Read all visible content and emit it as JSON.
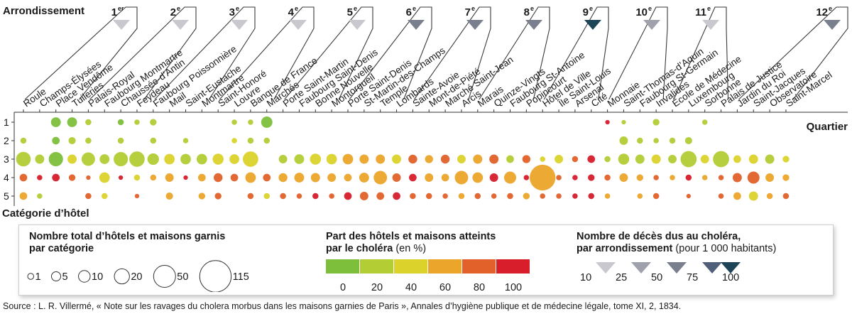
{
  "labels": {
    "arrondissement_title": "Arrondissement",
    "quartier_title": "Quartier",
    "categorie_title": "Catégorie d’hôtel",
    "source": "Source : L. R. Villermé, « Note sur les ravages du cholera morbus dans les maisons garnies de Paris », Annales d’hygiène publique et de médecine légale, tome XI, 2, 1834."
  },
  "legend": {
    "size_title_line1": "Nombre total d’hôtels et maisons garnis",
    "size_title_line2": "par catégorie",
    "size_values": [
      1,
      5,
      10,
      20,
      50,
      115
    ],
    "share_title_line1": "Part des hôtels et maisons atteints",
    "share_title_line2": "par le choléra",
    "share_unit": "(en %)",
    "share_ticks": [
      0,
      20,
      40,
      60,
      80,
      100
    ],
    "share_colors": [
      "#7dbf3a",
      "#b3cd34",
      "#dcd22c",
      "#eba52a",
      "#e2612a",
      "#d81d2b"
    ],
    "death_title_line1": "Nombre de décès dus au choléra,",
    "death_title_line2": "par arrondissement",
    "death_unit": "(pour 1 000 habitants)",
    "death_ticks": [
      10,
      25,
      50,
      75,
      100
    ],
    "death_colors": [
      "#c8c8ce",
      "#9fa1ac",
      "#7a7f8e",
      "#51607a",
      "#1e4458"
    ]
  },
  "chart_data": {
    "type": "bubble-matrix",
    "categories_y": [
      "1",
      "2",
      "3",
      "4",
      "5"
    ],
    "quartiers": [
      "Roule",
      "Champs-Élysées",
      "Place Vendôme",
      "Tuileries",
      "Palais-Royal",
      "Faubourg Montmartre",
      "Chaussée-d’Antin",
      "Feydeau",
      "Faubourg Poissonnière",
      "Mail",
      "Saint-Eustache",
      "Montmartre",
      "Saint-Honoré",
      "Louvre",
      "Banque de France",
      "Marchés",
      "Porte Saint-Martin",
      "Faubourg Saint-Denis",
      "Bonne Nouvelle",
      "Montorgueil",
      "Porte Saint-Denis",
      "St-Martin-des-Champs",
      "Temple",
      "Lombards",
      "Sainte-Avoie",
      "Mont-de-Piété",
      "Marché Saint-Jean",
      "Arcis",
      "Marais",
      "Quinze-Vingts",
      "Faubourg St-Antoine",
      "Popincourt",
      "Hôtel de Ville",
      "Île Saint-Louis",
      "Arsenal",
      "Cité",
      "Monnaie",
      "Saint-Thomas-d’Aquin",
      "Faubourg St-Germain",
      "Invalides",
      "École de Médecine",
      "Luxembourg",
      "Sorbonne",
      "Palais de Justice",
      "Jardin du Roi",
      "Saint-Jacques",
      "Observatoire",
      "Saint-Marcel"
    ],
    "arrondissements": [
      {
        "label": "1",
        "suffix": "er",
        "deaths_per_1000": 12,
        "quartiers": [
          0,
          1,
          2,
          3
        ]
      },
      {
        "label": "2",
        "suffix": "e",
        "deaths_per_1000": 12,
        "quartiers": [
          4,
          5,
          6,
          7
        ]
      },
      {
        "label": "3",
        "suffix": "e",
        "deaths_per_1000": 12,
        "quartiers": [
          8,
          9,
          10,
          11
        ]
      },
      {
        "label": "4",
        "suffix": "e",
        "deaths_per_1000": 14,
        "quartiers": [
          12,
          13,
          14,
          15
        ]
      },
      {
        "label": "5",
        "suffix": "e",
        "deaths_per_1000": 14,
        "quartiers": [
          16,
          17,
          18,
          19
        ]
      },
      {
        "label": "6",
        "suffix": "e",
        "deaths_per_1000": 40,
        "quartiers": [
          20,
          21,
          22,
          23
        ]
      },
      {
        "label": "7",
        "suffix": "e",
        "deaths_per_1000": 40,
        "quartiers": [
          24,
          25,
          26,
          27
        ]
      },
      {
        "label": "8",
        "suffix": "e",
        "deaths_per_1000": 40,
        "quartiers": [
          28,
          29,
          30,
          31
        ]
      },
      {
        "label": "9",
        "suffix": "e",
        "deaths_per_1000": 100,
        "quartiers": [
          32,
          33,
          34,
          35
        ]
      },
      {
        "label": "10",
        "suffix": "e",
        "deaths_per_1000": 25,
        "quartiers": [
          36,
          37,
          38,
          39
        ]
      },
      {
        "label": "11",
        "suffix": "e",
        "deaths_per_1000": 15,
        "quartiers": [
          40,
          41,
          42,
          43
        ]
      },
      {
        "label": "12",
        "suffix": "e",
        "deaths_per_1000": 60,
        "quartiers": [
          44,
          45,
          46,
          47
        ]
      }
    ],
    "bubbles": [
      {
        "q": 0,
        "cat": 2,
        "n": 3,
        "pct": 20
      },
      {
        "q": 0,
        "cat": 3,
        "n": 32,
        "pct": 20
      },
      {
        "q": 0,
        "cat": 4,
        "n": 6,
        "pct": 80
      },
      {
        "q": 0,
        "cat": 5,
        "n": 6,
        "pct": 60
      },
      {
        "q": 1,
        "cat": 3,
        "n": 10,
        "pct": 20
      },
      {
        "q": 1,
        "cat": 4,
        "n": 2,
        "pct": 100
      },
      {
        "q": 1,
        "cat": 5,
        "n": 2,
        "pct": 20
      },
      {
        "q": 2,
        "cat": 1,
        "n": 12,
        "pct": 0
      },
      {
        "q": 2,
        "cat": 2,
        "n": 6,
        "pct": 0
      },
      {
        "q": 2,
        "cat": 3,
        "n": 30,
        "pct": 0
      },
      {
        "q": 2,
        "cat": 4,
        "n": 6,
        "pct": 100
      },
      {
        "q": 3,
        "cat": 1,
        "n": 12,
        "pct": 0
      },
      {
        "q": 3,
        "cat": 2,
        "n": 5,
        "pct": 20
      },
      {
        "q": 3,
        "cat": 3,
        "n": 10,
        "pct": 40
      },
      {
        "q": 3,
        "cat": 4,
        "n": 4,
        "pct": 80
      },
      {
        "q": 4,
        "cat": 1,
        "n": 3,
        "pct": 20
      },
      {
        "q": 4,
        "cat": 2,
        "n": 3,
        "pct": 20
      },
      {
        "q": 4,
        "cat": 3,
        "n": 26,
        "pct": 20
      },
      {
        "q": 4,
        "cat": 4,
        "n": 1,
        "pct": 80
      },
      {
        "q": 4,
        "cat": 5,
        "n": 3,
        "pct": 80
      },
      {
        "q": 5,
        "cat": 3,
        "n": 12,
        "pct": 20
      },
      {
        "q": 5,
        "cat": 4,
        "n": 14,
        "pct": 40
      },
      {
        "q": 5,
        "cat": 5,
        "n": 3,
        "pct": 40
      },
      {
        "q": 6,
        "cat": 1,
        "n": 3,
        "pct": 0
      },
      {
        "q": 6,
        "cat": 2,
        "n": 3,
        "pct": 20
      },
      {
        "q": 6,
        "cat": 3,
        "n": 30,
        "pct": 20
      },
      {
        "q": 6,
        "cat": 4,
        "n": 1,
        "pct": 100
      },
      {
        "q": 7,
        "cat": 1,
        "n": 2,
        "pct": 20
      },
      {
        "q": 7,
        "cat": 3,
        "n": 36,
        "pct": 20
      },
      {
        "q": 7,
        "cat": 4,
        "n": 3,
        "pct": 40
      },
      {
        "q": 7,
        "cat": 5,
        "n": 1,
        "pct": 80
      },
      {
        "q": 8,
        "cat": 1,
        "n": 4,
        "pct": 20
      },
      {
        "q": 8,
        "cat": 2,
        "n": 3,
        "pct": 20
      },
      {
        "q": 8,
        "cat": 3,
        "n": 18,
        "pct": 20
      },
      {
        "q": 8,
        "cat": 4,
        "n": 3,
        "pct": 60
      },
      {
        "q": 9,
        "cat": 3,
        "n": 14,
        "pct": 40
      },
      {
        "q": 9,
        "cat": 4,
        "n": 8,
        "pct": 60
      },
      {
        "q": 9,
        "cat": 5,
        "n": 5,
        "pct": 60
      },
      {
        "q": 10,
        "cat": 2,
        "n": 2,
        "pct": 20
      },
      {
        "q": 10,
        "cat": 3,
        "n": 14,
        "pct": 20
      },
      {
        "q": 10,
        "cat": 4,
        "n": 1,
        "pct": 100
      },
      {
        "q": 11,
        "cat": 3,
        "n": 14,
        "pct": 20
      },
      {
        "q": 11,
        "cat": 4,
        "n": 6,
        "pct": 60
      },
      {
        "q": 11,
        "cat": 5,
        "n": 4,
        "pct": 60
      },
      {
        "q": 12,
        "cat": 3,
        "n": 16,
        "pct": 40
      },
      {
        "q": 12,
        "cat": 4,
        "n": 9,
        "pct": 80
      },
      {
        "q": 12,
        "cat": 5,
        "n": 4,
        "pct": 80
      },
      {
        "q": 13,
        "cat": 1,
        "n": 2,
        "pct": 20
      },
      {
        "q": 13,
        "cat": 2,
        "n": 2,
        "pct": 40
      },
      {
        "q": 13,
        "cat": 3,
        "n": 12,
        "pct": 40
      },
      {
        "q": 13,
        "cat": 4,
        "n": 6,
        "pct": 80
      },
      {
        "q": 14,
        "cat": 1,
        "n": 2,
        "pct": 20
      },
      {
        "q": 14,
        "cat": 2,
        "n": 3,
        "pct": 20
      },
      {
        "q": 14,
        "cat": 3,
        "n": 36,
        "pct": 40
      },
      {
        "q": 14,
        "cat": 4,
        "n": 14,
        "pct": 60
      },
      {
        "q": 14,
        "cat": 5,
        "n": 3,
        "pct": 80
      },
      {
        "q": 15,
        "cat": 1,
        "n": 17,
        "pct": 0
      },
      {
        "q": 15,
        "cat": 2,
        "n": 3,
        "pct": 20
      },
      {
        "q": 15,
        "cat": 4,
        "n": 6,
        "pct": 80
      },
      {
        "q": 15,
        "cat": 5,
        "n": 3,
        "pct": 40
      },
      {
        "q": 16,
        "cat": 3,
        "n": 8,
        "pct": 20
      },
      {
        "q": 16,
        "cat": 4,
        "n": 9,
        "pct": 60
      },
      {
        "q": 16,
        "cat": 5,
        "n": 3,
        "pct": 80
      },
      {
        "q": 17,
        "cat": 3,
        "n": 12,
        "pct": 20
      },
      {
        "q": 17,
        "cat": 4,
        "n": 12,
        "pct": 60
      },
      {
        "q": 17,
        "cat": 5,
        "n": 2,
        "pct": 80
      },
      {
        "q": 18,
        "cat": 3,
        "n": 16,
        "pct": 40
      },
      {
        "q": 18,
        "cat": 4,
        "n": 10,
        "pct": 60
      },
      {
        "q": 18,
        "cat": 5,
        "n": 3,
        "pct": 100
      },
      {
        "q": 19,
        "cat": 3,
        "n": 14,
        "pct": 40
      },
      {
        "q": 19,
        "cat": 4,
        "n": 8,
        "pct": 60
      },
      {
        "q": 19,
        "cat": 5,
        "n": 2,
        "pct": 80
      },
      {
        "q": 20,
        "cat": 3,
        "n": 14,
        "pct": 60
      },
      {
        "q": 20,
        "cat": 4,
        "n": 6,
        "pct": 60
      },
      {
        "q": 20,
        "cat": 5,
        "n": 6,
        "pct": 100
      },
      {
        "q": 21,
        "cat": 3,
        "n": 10,
        "pct": 60
      },
      {
        "q": 21,
        "cat": 4,
        "n": 12,
        "pct": 60
      },
      {
        "q": 21,
        "cat": 5,
        "n": 8,
        "pct": 80
      },
      {
        "q": 22,
        "cat": 3,
        "n": 10,
        "pct": 60
      },
      {
        "q": 22,
        "cat": 4,
        "n": 26,
        "pct": 60
      },
      {
        "q": 22,
        "cat": 5,
        "n": 6,
        "pct": 80
      },
      {
        "q": 23,
        "cat": 3,
        "n": 10,
        "pct": 40
      },
      {
        "q": 23,
        "cat": 4,
        "n": 8,
        "pct": 80
      },
      {
        "q": 23,
        "cat": 5,
        "n": 6,
        "pct": 100
      },
      {
        "q": 24,
        "cat": 3,
        "n": 9,
        "pct": 80
      },
      {
        "q": 24,
        "cat": 4,
        "n": 6,
        "pct": 100
      },
      {
        "q": 24,
        "cat": 5,
        "n": 3,
        "pct": 80
      },
      {
        "q": 25,
        "cat": 3,
        "n": 7,
        "pct": 60
      },
      {
        "q": 25,
        "cat": 4,
        "n": 8,
        "pct": 60
      },
      {
        "q": 25,
        "cat": 5,
        "n": 3,
        "pct": 80
      },
      {
        "q": 26,
        "cat": 3,
        "n": 9,
        "pct": 80
      },
      {
        "q": 26,
        "cat": 4,
        "n": 6,
        "pct": 60
      },
      {
        "q": 26,
        "cat": 5,
        "n": 2,
        "pct": 80
      },
      {
        "q": 27,
        "cat": 3,
        "n": 8,
        "pct": 40
      },
      {
        "q": 27,
        "cat": 4,
        "n": 26,
        "pct": 60
      },
      {
        "q": 27,
        "cat": 5,
        "n": 3,
        "pct": 60
      },
      {
        "q": 28,
        "cat": 3,
        "n": 10,
        "pct": 60
      },
      {
        "q": 28,
        "cat": 4,
        "n": 14,
        "pct": 60
      },
      {
        "q": 28,
        "cat": 5,
        "n": 3,
        "pct": 80
      },
      {
        "q": 29,
        "cat": 3,
        "n": 10,
        "pct": 80
      },
      {
        "q": 29,
        "cat": 4,
        "n": 8,
        "pct": 100
      },
      {
        "q": 29,
        "cat": 5,
        "n": 2,
        "pct": 80
      },
      {
        "q": 30,
        "cat": 3,
        "n": 6,
        "pct": 20
      },
      {
        "q": 30,
        "cat": 4,
        "n": 20,
        "pct": 60
      },
      {
        "q": 30,
        "cat": 5,
        "n": 3,
        "pct": 80
      },
      {
        "q": 31,
        "cat": 3,
        "n": 7,
        "pct": 80
      },
      {
        "q": 31,
        "cat": 4,
        "n": 2,
        "pct": 100
      },
      {
        "q": 31,
        "cat": 5,
        "n": 4,
        "pct": 60
      },
      {
        "q": 32,
        "cat": 3,
        "n": 2,
        "pct": 40
      },
      {
        "q": 32,
        "cat": 4,
        "n": 115,
        "pct": 60
      },
      {
        "q": 32,
        "cat": 5,
        "n": 2,
        "pct": 80
      },
      {
        "q": 33,
        "cat": 3,
        "n": 8,
        "pct": 40
      },
      {
        "q": 33,
        "cat": 4,
        "n": 2,
        "pct": 80
      },
      {
        "q": 33,
        "cat": 5,
        "n": 2,
        "pct": 80
      },
      {
        "q": 34,
        "cat": 3,
        "n": 3,
        "pct": 80
      },
      {
        "q": 34,
        "cat": 4,
        "n": 2,
        "pct": 100
      },
      {
        "q": 34,
        "cat": 5,
        "n": 2,
        "pct": 100
      },
      {
        "q": 35,
        "cat": 3,
        "n": 6,
        "pct": 100
      },
      {
        "q": 35,
        "cat": 4,
        "n": 4,
        "pct": 100
      },
      {
        "q": 35,
        "cat": 5,
        "n": 3,
        "pct": 100
      },
      {
        "q": 36,
        "cat": 1,
        "n": 1,
        "pct": 100
      },
      {
        "q": 36,
        "cat": 3,
        "n": 3,
        "pct": 20
      },
      {
        "q": 36,
        "cat": 4,
        "n": 3,
        "pct": 80
      },
      {
        "q": 36,
        "cat": 5,
        "n": 2,
        "pct": 60
      },
      {
        "q": 37,
        "cat": 1,
        "n": 1,
        "pct": 20
      },
      {
        "q": 37,
        "cat": 2,
        "n": 8,
        "pct": 20
      },
      {
        "q": 37,
        "cat": 3,
        "n": 16,
        "pct": 20
      },
      {
        "q": 37,
        "cat": 4,
        "n": 8,
        "pct": 60
      },
      {
        "q": 38,
        "cat": 2,
        "n": 3,
        "pct": 20
      },
      {
        "q": 38,
        "cat": 3,
        "n": 10,
        "pct": 20
      },
      {
        "q": 38,
        "cat": 4,
        "n": 4,
        "pct": 60
      },
      {
        "q": 38,
        "cat": 5,
        "n": 2,
        "pct": 60
      },
      {
        "q": 39,
        "cat": 1,
        "n": 4,
        "pct": 20
      },
      {
        "q": 39,
        "cat": 2,
        "n": 2,
        "pct": 20
      },
      {
        "q": 39,
        "cat": 3,
        "n": 10,
        "pct": 40
      },
      {
        "q": 39,
        "cat": 4,
        "n": 2,
        "pct": 80
      },
      {
        "q": 39,
        "cat": 5,
        "n": 3,
        "pct": 80
      },
      {
        "q": 40,
        "cat": 2,
        "n": 3,
        "pct": 20
      },
      {
        "q": 40,
        "cat": 3,
        "n": 8,
        "pct": 20
      },
      {
        "q": 40,
        "cat": 4,
        "n": 2,
        "pct": 60
      },
      {
        "q": 41,
        "cat": 2,
        "n": 5,
        "pct": 20
      },
      {
        "q": 41,
        "cat": 3,
        "n": 40,
        "pct": 20
      },
      {
        "q": 41,
        "cat": 4,
        "n": 3,
        "pct": 100
      },
      {
        "q": 41,
        "cat": 5,
        "n": 1,
        "pct": 80
      },
      {
        "q": 42,
        "cat": 1,
        "n": 2,
        "pct": 20
      },
      {
        "q": 42,
        "cat": 3,
        "n": 8,
        "pct": 40
      },
      {
        "q": 42,
        "cat": 4,
        "n": 2,
        "pct": 60
      },
      {
        "q": 43,
        "cat": 3,
        "n": 40,
        "pct": 20
      },
      {
        "q": 43,
        "cat": 4,
        "n": 2,
        "pct": 80
      },
      {
        "q": 43,
        "cat": 5,
        "n": 2,
        "pct": 80
      },
      {
        "q": 44,
        "cat": 3,
        "n": 6,
        "pct": 40
      },
      {
        "q": 44,
        "cat": 4,
        "n": 10,
        "pct": 80
      },
      {
        "q": 44,
        "cat": 5,
        "n": 6,
        "pct": 60
      },
      {
        "q": 45,
        "cat": 3,
        "n": 10,
        "pct": 40
      },
      {
        "q": 45,
        "cat": 4,
        "n": 20,
        "pct": 80
      },
      {
        "q": 45,
        "cat": 5,
        "n": 10,
        "pct": 40
      },
      {
        "q": 46,
        "cat": 3,
        "n": 10,
        "pct": 20
      },
      {
        "q": 46,
        "cat": 4,
        "n": 8,
        "pct": 60
      },
      {
        "q": 46,
        "cat": 5,
        "n": 3,
        "pct": 60
      },
      {
        "q": 47,
        "cat": 3,
        "n": 4,
        "pct": 40
      },
      {
        "q": 47,
        "cat": 4,
        "n": 4,
        "pct": 60
      },
      {
        "q": 47,
        "cat": 5,
        "n": 3,
        "pct": 80
      }
    ]
  }
}
